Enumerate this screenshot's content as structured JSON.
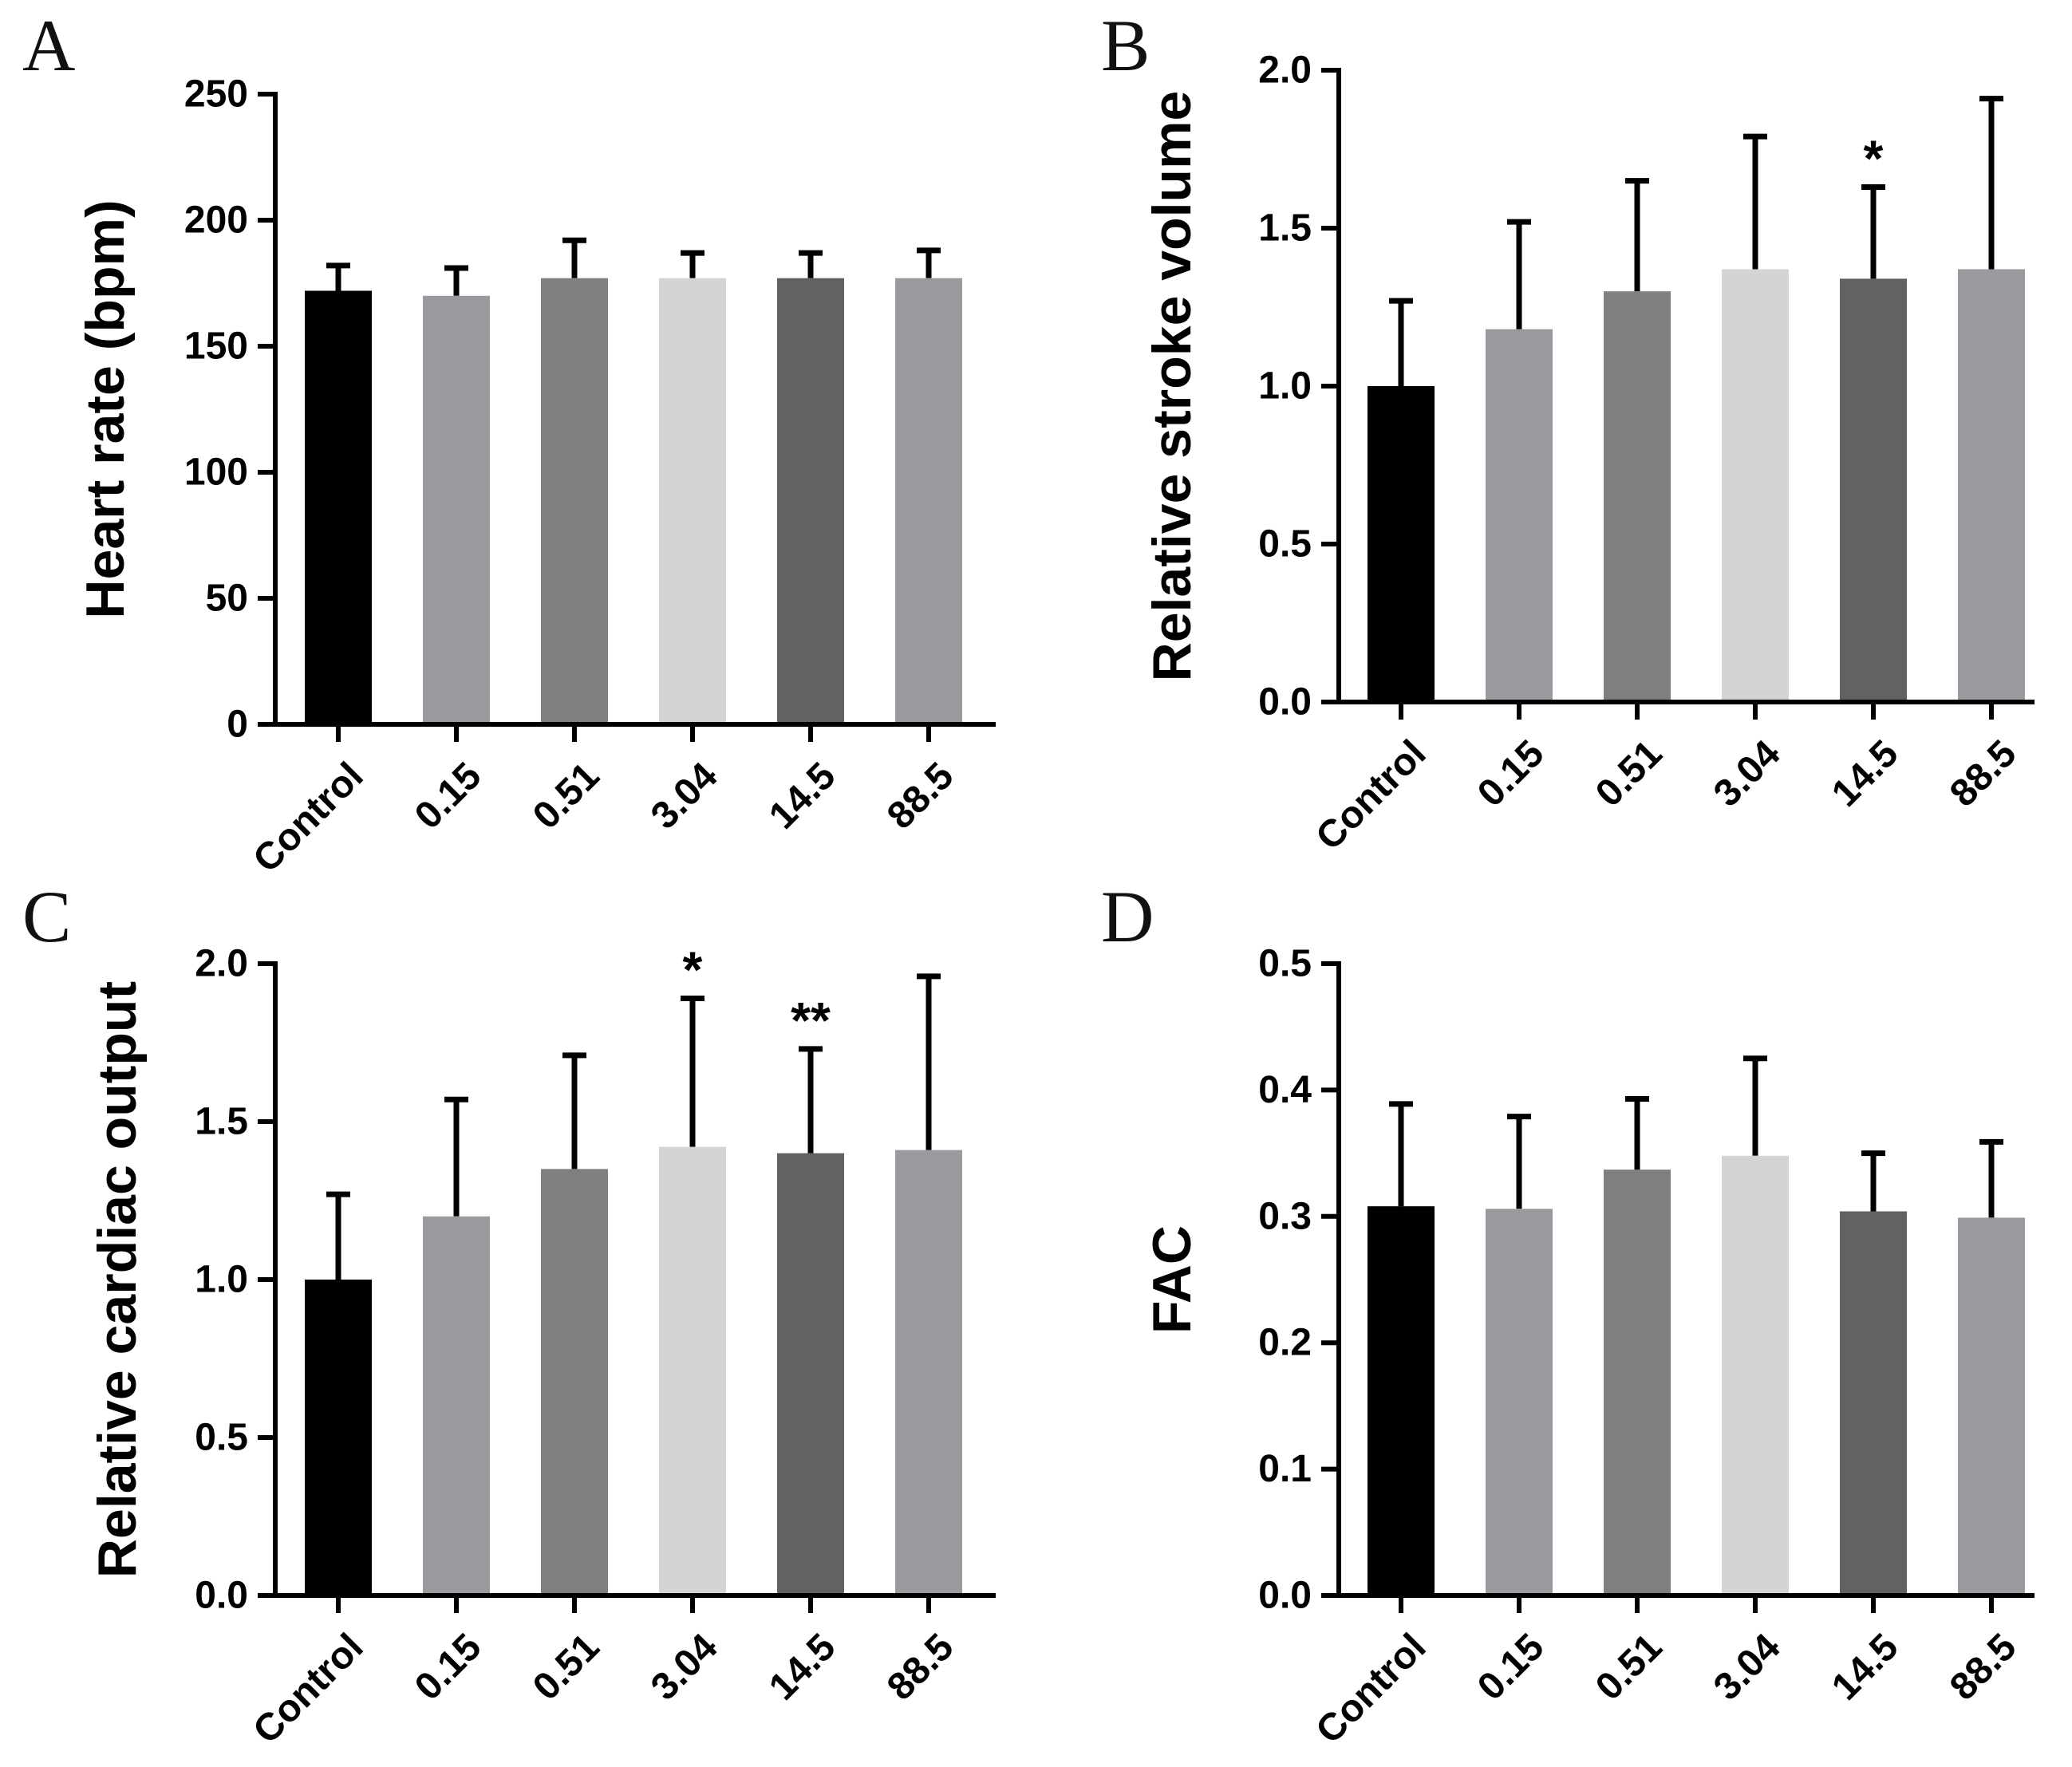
{
  "chart_data": [
    {
      "panel": "A",
      "type": "bar",
      "ylabel": "Heart rate (bpm)",
      "categories": [
        "Control",
        "0.15",
        "0.51",
        "3.04",
        "14.5",
        "88.5"
      ],
      "values": [
        172,
        170,
        177,
        177,
        177,
        177
      ],
      "errors": [
        10,
        11,
        15,
        10,
        10,
        11
      ],
      "ylim": [
        0,
        250
      ],
      "yticks": [
        0,
        50,
        100,
        150,
        200,
        250
      ],
      "ytick_labels": [
        "0",
        "50",
        "100",
        "150",
        "200",
        "250"
      ],
      "significance": [
        "",
        "",
        "",
        "",
        "",
        ""
      ],
      "colors": [
        "#000000",
        "#9a9a9e",
        "#7f7f7f",
        "#d4d4d4",
        "#626262",
        "#9a9a9e"
      ]
    },
    {
      "panel": "B",
      "type": "bar",
      "ylabel": "Relative stroke volume",
      "categories": [
        "Control",
        "0.15",
        "0.51",
        "3.04",
        "14.5",
        "88.5"
      ],
      "values": [
        1.0,
        1.18,
        1.3,
        1.37,
        1.34,
        1.37
      ],
      "errors": [
        0.27,
        0.34,
        0.35,
        0.42,
        0.29,
        0.54
      ],
      "ylim": [
        0,
        2.0
      ],
      "yticks": [
        0,
        0.5,
        1.0,
        1.5,
        2.0
      ],
      "ytick_labels": [
        "0.0",
        "0.5",
        "1.0",
        "1.5",
        "2.0"
      ],
      "significance": [
        "",
        "",
        "",
        "",
        "*",
        ""
      ],
      "colors": [
        "#000000",
        "#9a9a9e",
        "#7f7f7f",
        "#d4d4d4",
        "#626262",
        "#9a9a9e"
      ]
    },
    {
      "panel": "C",
      "type": "bar",
      "ylabel": "Relative cardiac output",
      "categories": [
        "Control",
        "0.15",
        "0.51",
        "3.04",
        "14.5",
        "88.5"
      ],
      "values": [
        1.0,
        1.2,
        1.35,
        1.42,
        1.4,
        1.41
      ],
      "errors": [
        0.27,
        0.37,
        0.36,
        0.47,
        0.33,
        0.55
      ],
      "ylim": [
        0,
        2.0
      ],
      "yticks": [
        0,
        0.5,
        1.0,
        1.5,
        2.0
      ],
      "ytick_labels": [
        "0.0",
        "0.5",
        "1.0",
        "1.5",
        "2.0"
      ],
      "significance": [
        "",
        "",
        "",
        "*",
        "**",
        ""
      ],
      "colors": [
        "#000000",
        "#9a9a9e",
        "#7f7f7f",
        "#d4d4d4",
        "#626262",
        "#9a9a9e"
      ]
    },
    {
      "panel": "D",
      "type": "bar",
      "ylabel": "FAC",
      "categories": [
        "Control",
        "0.15",
        "0.51",
        "3.04",
        "14.5",
        "88.5"
      ],
      "values": [
        0.308,
        0.306,
        0.337,
        0.348,
        0.304,
        0.299
      ],
      "errors": [
        0.081,
        0.073,
        0.056,
        0.077,
        0.046,
        0.06
      ],
      "ylim": [
        0,
        0.5
      ],
      "yticks": [
        0,
        0.1,
        0.2,
        0.3,
        0.4,
        0.5
      ],
      "ytick_labels": [
        "0.0",
        "0.1",
        "0.2",
        "0.3",
        "0.4",
        "0.5"
      ],
      "significance": [
        "",
        "",
        "",
        "",
        "",
        ""
      ],
      "colors": [
        "#000000",
        "#9a9a9e",
        "#7f7f7f",
        "#d4d4d4",
        "#626262",
        "#9a9a9e"
      ]
    }
  ]
}
